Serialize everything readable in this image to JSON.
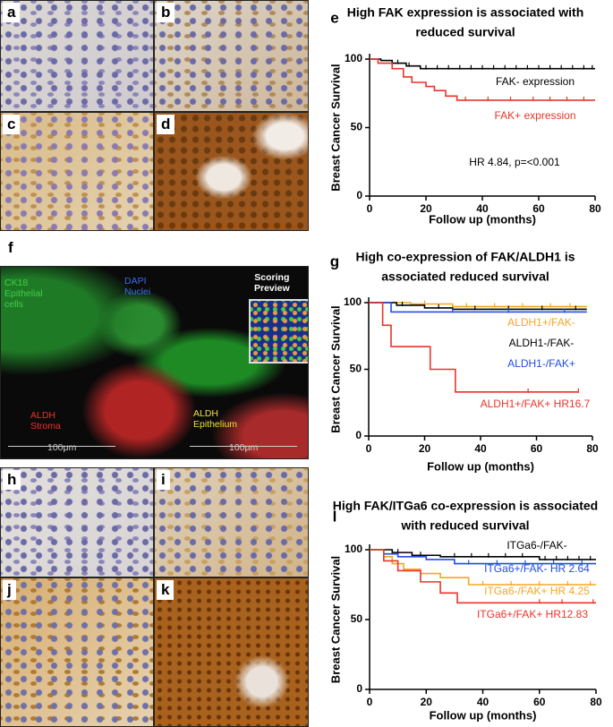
{
  "panels": [
    {
      "label": "a"
    },
    {
      "label": "b"
    },
    {
      "label": "c"
    },
    {
      "label": "d"
    },
    {
      "label": "f",
      "annotations": [
        {
          "lines": [
            "CK18",
            "Epithelial",
            "cells"
          ],
          "color": "#3fcf4a"
        },
        {
          "lines": [
            "DAPI",
            "Nuclei"
          ],
          "color": "#3b6cf0"
        },
        {
          "lines": [
            "ALDH",
            "Stroma"
          ],
          "color": "#f03030"
        },
        {
          "lines": [
            "ALDH",
            "Epithelium"
          ],
          "color": "#f0e030"
        },
        {
          "lines": [
            "Scoring",
            "Preview"
          ],
          "color": "#ffffff"
        },
        {
          "lines": [
            "100μm"
          ],
          "color": "#cccccc"
        },
        {
          "lines": [
            "100μm"
          ],
          "color": "#cccccc"
        }
      ]
    },
    {
      "label": "h"
    },
    {
      "label": "i"
    },
    {
      "label": "j"
    },
    {
      "label": "k"
    }
  ],
  "chart_data": [
    {
      "type": "step",
      "panel_label": "e",
      "title": [
        "High FAK expression is associated with",
        "reduced survival"
      ],
      "x_label": "Follow up (months)",
      "y_label": "Breast Cancer Survival",
      "xlim": [
        0,
        80
      ],
      "ylim": [
        0,
        100
      ],
      "xticks": [
        0,
        20,
        40,
        60,
        80
      ],
      "yticks": [
        0,
        50,
        100
      ],
      "annotation": "HR 4.84, p=<0.001",
      "series": [
        {
          "name": "FAK- expression",
          "color": "#000000",
          "x": [
            0,
            4,
            8,
            13,
            18,
            80
          ],
          "values": [
            100,
            99,
            97,
            95,
            93,
            93
          ],
          "censored": [
            10,
            14,
            20,
            24,
            28,
            32,
            36,
            40,
            44,
            48,
            52,
            56,
            60,
            64,
            68,
            72,
            76,
            79
          ]
        },
        {
          "name": "FAK+ expression",
          "color": "#e8352a",
          "x": [
            0,
            3,
            8,
            12,
            15,
            20,
            23,
            27,
            31,
            80
          ],
          "values": [
            100,
            97,
            93,
            87,
            83,
            80,
            77,
            73,
            70,
            70
          ],
          "censored": [
            34,
            42,
            50,
            58,
            64,
            70,
            76
          ]
        }
      ]
    },
    {
      "type": "step",
      "panel_label": "g",
      "title": [
        "High co-expression of FAK/ALDH1 is",
        "associated reduced survival"
      ],
      "x_label": "Follow up (months)",
      "y_label": "Breast Cancer Survival",
      "xlim": [
        0,
        80
      ],
      "ylim": [
        0,
        100
      ],
      "xticks": [
        0,
        20,
        40,
        60,
        80
      ],
      "yticks": [
        0,
        50,
        100
      ],
      "series": [
        {
          "name": "ALDH1+/FAK-",
          "color": "#f5a623",
          "x": [
            0,
            15,
            30,
            78
          ],
          "values": [
            100,
            99,
            97,
            97
          ],
          "censored": [
            20,
            35,
            45,
            55,
            65,
            72
          ]
        },
        {
          "name": "ALDH1-/FAK-",
          "color": "#000000",
          "x": [
            0,
            10,
            20,
            30,
            78
          ],
          "values": [
            100,
            98,
            96,
            95,
            95
          ],
          "censored": [
            12,
            25,
            38,
            50,
            62,
            74
          ]
        },
        {
          "name": "ALDH1-/FAK+",
          "color": "#1f4fe0",
          "x": [
            0,
            8,
            78
          ],
          "values": [
            100,
            93,
            93
          ],
          "censored": [
            30,
            50,
            70
          ]
        },
        {
          "name": "ALDH1+/FAK+ HR16.7",
          "color": "#e8352a",
          "x": [
            0,
            5,
            8,
            22,
            31,
            75
          ],
          "values": [
            100,
            83,
            67,
            50,
            33,
            33
          ],
          "censored": [
            57,
            75
          ]
        }
      ]
    },
    {
      "type": "step",
      "panel_label": "l",
      "title": [
        "High FAK/ITGa6 co-expression is associated",
        "with reduced survival"
      ],
      "x_label": "Follow up (months)",
      "y_label": "Breast Cancer Survival",
      "xlim": [
        0,
        80
      ],
      "ylim": [
        0,
        100
      ],
      "xticks": [
        0,
        20,
        40,
        60,
        80
      ],
      "yticks": [
        0,
        50,
        100
      ],
      "series": [
        {
          "name": "ITGa6-/FAK-",
          "color": "#000000",
          "x": [
            0,
            8,
            15,
            25,
            60,
            80
          ],
          "values": [
            100,
            98,
            96,
            95,
            93,
            93
          ],
          "censored": [
            10,
            18,
            30,
            36,
            42,
            48,
            54,
            62,
            66,
            70,
            74,
            78
          ]
        },
        {
          "name": "ITGa6+/FAK- HR 2.64",
          "color": "#1f4fe0",
          "x": [
            0,
            5,
            10,
            20,
            30,
            80
          ],
          "values": [
            100,
            97,
            95,
            93,
            90,
            90
          ],
          "censored": [
            35,
            45,
            55,
            65,
            75
          ]
        },
        {
          "name": "ITGa6-/FAK+ HR 4.25",
          "color": "#f5a623",
          "x": [
            0,
            5,
            8,
            12,
            18,
            25,
            35,
            80
          ],
          "values": [
            100,
            95,
            90,
            86,
            83,
            80,
            75,
            75
          ],
          "censored": [
            40,
            50,
            60,
            70,
            78
          ]
        },
        {
          "name": "ITGa6+/FAK+ HR12.83",
          "color": "#e8352a",
          "x": [
            0,
            5,
            10,
            18,
            25,
            31,
            80
          ],
          "values": [
            100,
            92,
            85,
            77,
            69,
            62,
            62
          ],
          "censored": [
            60,
            68,
            79
          ]
        }
      ]
    }
  ]
}
